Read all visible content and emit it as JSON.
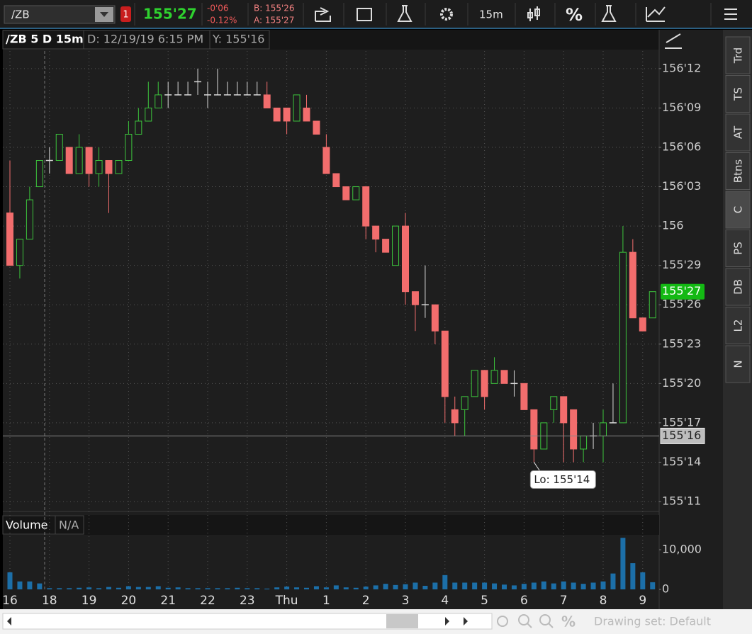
{
  "toolbar": {
    "symbol": "/ZB",
    "alert_count": "1",
    "last": "155'27",
    "net_change": "-0'06",
    "percent_change": "-0.12%",
    "bid": "B: 155'26",
    "ask": "A: 155'27",
    "timeframe": "15m",
    "percent": "%"
  },
  "chart_header": {
    "title": "/ZB 5 D 15m",
    "date": "D: 12/19/19 6:15 PM",
    "y": "Y: 155'16"
  },
  "side_tabs": [
    "Trd",
    "TS",
    "AT",
    "Btns",
    "C",
    "PS",
    "DB",
    "L2",
    "N"
  ],
  "footer": {
    "drawing_set": "Drawing set: Default"
  },
  "chart_data": [
    {
      "type": "candlestick",
      "categories": [
        "16",
        null,
        null,
        null,
        "18",
        null,
        null,
        null,
        "19",
        null,
        null,
        null,
        "20",
        null,
        null,
        null,
        "21",
        null,
        null,
        null,
        "22",
        null,
        null,
        null,
        "23",
        null,
        null,
        null,
        "Thu",
        null,
        null,
        null,
        "1",
        null,
        null,
        null,
        "2",
        null,
        null,
        null,
        "3",
        null,
        null,
        null,
        "4",
        null,
        null,
        null,
        "5",
        null,
        null,
        null,
        "6",
        null,
        null,
        null,
        "7",
        null,
        null,
        null,
        "8",
        null,
        null,
        null,
        "9",
        null
      ],
      "open": [
        156.03125,
        155.90625,
        155.96875,
        156.09375,
        156.15625,
        156.15625,
        156.1875,
        156.125,
        156.1875,
        156.125,
        156.15625,
        156.125,
        156.15625,
        156.21875,
        156.25,
        156.28125,
        156.3125,
        156.3125,
        156.3125,
        156.34375,
        156.3125,
        156.3125,
        156.3125,
        156.3125,
        156.3125,
        156.3125,
        156.3125,
        156.28125,
        156.28125,
        156.25,
        156.28125,
        156.25,
        156.1875,
        156.125,
        156.09375,
        156.0625,
        156.09375,
        156,
        155.96875,
        155.90625,
        156,
        155.84375,
        155.8125,
        155.8125,
        155.75,
        155.5625,
        155.5625,
        155.59375,
        155.65625,
        155.625,
        155.65625,
        155.625,
        155.625,
        155.5625,
        155.46875,
        155.5625,
        155.59375,
        155.5625,
        155.46875,
        155.5,
        155.5,
        155.53125,
        155.53125,
        155.9375,
        155.78125,
        155.78125
      ],
      "high": [
        156.15625,
        155.96875,
        156.09375,
        156.15625,
        156.1875,
        156.21875,
        156.1875,
        156.21875,
        156.1875,
        156.1875,
        156.15625,
        156.15625,
        156.25,
        156.28125,
        156.34375,
        156.34375,
        156.34375,
        156.34375,
        156.34375,
        156.375,
        156.34375,
        156.375,
        156.34375,
        156.34375,
        156.34375,
        156.34375,
        156.34375,
        156.28125,
        156.28125,
        156.3125,
        156.3125,
        156.25,
        156.21875,
        156.125,
        156.09375,
        156.09375,
        156.09375,
        156,
        155.96875,
        156,
        156.03125,
        155.84375,
        155.90625,
        155.8125,
        155.75,
        155.59375,
        155.59375,
        155.65625,
        155.65625,
        155.6875,
        155.65625,
        155.65625,
        155.625,
        155.5625,
        155.53125,
        155.59375,
        155.59375,
        155.5625,
        155.5,
        155.53125,
        155.5625,
        155.625,
        156,
        155.96875,
        155.78125,
        155.84375
      ],
      "low": [
        155.90625,
        155.875,
        155.96875,
        156.09375,
        156.125,
        156.15625,
        156.125,
        156.125,
        156.09375,
        156.09375,
        156.03125,
        156.125,
        156.15625,
        156.21875,
        156.25,
        156.28125,
        156.28125,
        156.3125,
        156.3125,
        156.3125,
        156.28125,
        156.3125,
        156.3125,
        156.3125,
        156.3125,
        156.3125,
        156.28125,
        156.25,
        156.21875,
        156.25,
        156.25,
        156.21875,
        156.125,
        156.09375,
        156.0625,
        156.0625,
        155.96875,
        155.9375,
        155.9375,
        155.90625,
        155.8125,
        155.75,
        155.78125,
        155.71875,
        155.53125,
        155.5,
        155.5,
        155.59375,
        155.5625,
        155.625,
        155.625,
        155.59375,
        155.5625,
        155.4375,
        155.46875,
        155.53125,
        155.4375,
        155.4375,
        155.4375,
        155.46875,
        155.4375,
        155.53125,
        155.53125,
        155.78125,
        155.75,
        155.78125
      ],
      "close": [
        155.90625,
        155.96875,
        156.0625,
        156.15625,
        156.15625,
        156.21875,
        156.125,
        156.1875,
        156.125,
        156.15625,
        156.125,
        156.15625,
        156.21875,
        156.25,
        156.28125,
        156.3125,
        156.3125,
        156.3125,
        156.3125,
        156.34375,
        156.3125,
        156.3125,
        156.3125,
        156.3125,
        156.3125,
        156.3125,
        156.28125,
        156.25,
        156.25,
        156.3125,
        156.25,
        156.21875,
        156.125,
        156.09375,
        156.0625,
        156.09375,
        156,
        155.96875,
        155.9375,
        156,
        155.84375,
        155.8125,
        155.8125,
        155.75,
        155.59375,
        155.53125,
        155.59375,
        155.65625,
        155.59375,
        155.65625,
        155.625,
        155.625,
        155.5625,
        155.46875,
        155.53125,
        155.59375,
        155.53125,
        155.46875,
        155.5,
        155.5,
        155.53125,
        155.53125,
        155.9375,
        155.78125,
        155.75,
        155.84375
      ],
      "ylim": [
        155.3235,
        156.417
      ],
      "yticks": [
        {
          "value": 155.34375,
          "label": "155'11"
        },
        {
          "value": 155.4375,
          "label": "155'14"
        },
        {
          "value": 155.53125,
          "label": "155'17"
        },
        {
          "value": 155.625,
          "label": "155'20"
        },
        {
          "value": 155.71875,
          "label": "155'23"
        },
        {
          "value": 155.8125,
          "label": "155'26"
        },
        {
          "value": 155.90625,
          "label": "155'29"
        },
        156,
        {
          "value": 156.09375,
          "label": "156'03"
        },
        {
          "value": 156.1875,
          "label": "156'06"
        },
        {
          "value": 156.28125,
          "label": "156'09"
        },
        {
          "value": 156.375,
          "label": "156'12"
        }
      ],
      "grid": true,
      "up_color": "#3cc43c",
      "down_color": "#f26d6d",
      "doji_color": "#d8d8d8",
      "last_price": {
        "value": 155.84375,
        "label": "155'27"
      },
      "crosshair": {
        "value": 155.5,
        "label": "155'16"
      },
      "low_label": {
        "value": 155.4375,
        "label": "Lo: 155'14"
      }
    },
    {
      "type": "bar",
      "title": "Volume",
      "subtitle": "N/A",
      "values": [
        4300,
        2000,
        2000,
        1500,
        300,
        300,
        300,
        400,
        500,
        300,
        600,
        400,
        800,
        600,
        600,
        800,
        400,
        500,
        300,
        300,
        300,
        300,
        300,
        400,
        300,
        300,
        200,
        500,
        700,
        500,
        400,
        800,
        500,
        1000,
        500,
        400,
        700,
        1000,
        1400,
        1100,
        1300,
        1700,
        900,
        1700,
        3600,
        1700,
        1700,
        1700,
        1700,
        1500,
        1200,
        1000,
        1400,
        1700,
        2000,
        1500,
        2000,
        1700,
        1400,
        1700,
        2000,
        4000,
        13000,
        6600,
        4300,
        1800
      ],
      "ylim": [
        0,
        13400
      ],
      "yticks": [
        0,
        {
          "value": 10000,
          "label": "10,000"
        }
      ],
      "color": "#1c6fa8"
    }
  ]
}
